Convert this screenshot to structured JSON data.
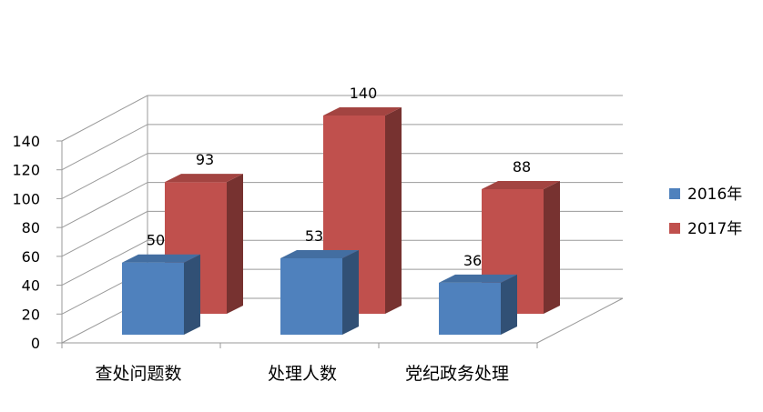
{
  "chart_data": {
    "type": "bar",
    "categories": [
      "查处问题数",
      "处理人数",
      "党纪政务处理"
    ],
    "series": [
      {
        "name": "2016年",
        "values": [
          50,
          53,
          36
        ],
        "color": "#4f81bd"
      },
      {
        "name": "2017年",
        "values": [
          93,
          140,
          88
        ],
        "color": "#c0504d"
      }
    ],
    "ylim": [
      0,
      140
    ],
    "yticks": [
      0,
      20,
      40,
      60,
      80,
      100,
      120,
      140
    ],
    "grid": true,
    "legend_position": "right",
    "style": "3d-clustered-column"
  }
}
